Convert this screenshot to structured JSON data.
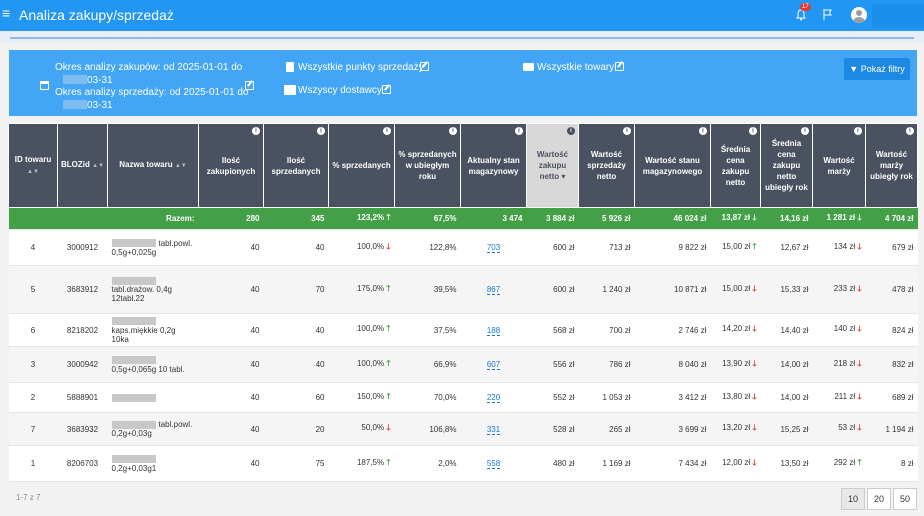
{
  "header": {
    "menu_icon": "≡",
    "title": "Analiza zakupy/sprzedaż",
    "notifications_count": "17",
    "bell_icon": "bell-icon",
    "flag_icon": "flag-icon",
    "avatar_icon": "user-avatar-icon"
  },
  "filters": {
    "purchase_period": "Okres analizy zakupów: od 2025-01-01 do",
    "purchase_period_end": "03-31",
    "sales_period": "Okres analizy sprzedaży: od 2025-01-01 do",
    "sales_period_end": "03-31",
    "points_of_sale": "Wszystkie punkty sprzedaży",
    "suppliers": "Wszyscy dostawcy",
    "products": "Wszystkie towary",
    "show_filters_button": "Pokaż filtry"
  },
  "table": {
    "columns": [
      "ID towaru",
      "BLOZid",
      "Nazwa towaru",
      "Ilość zakupionych",
      "Ilość sprzedanych",
      "% sprzedanych",
      "% sprzedanych w ubiegłym roku",
      "Aktualny stan magazynowy",
      "Wartość zakupu netto",
      "Wartość sprzedaży netto",
      "Wartość stanu magazynowego",
      "Średnia cena zakupu netto",
      "Średnia cena zakupu netto ubiegły rok",
      "Wartość marży",
      "Wartość marży ubiegły rok"
    ],
    "total": {
      "label": "Razem:",
      "bought": "280",
      "sold": "345",
      "pct_sold": "123,2%",
      "pct_sold_dir": "up",
      "pct_last_year": "67,5%",
      "stock": "3 474",
      "purchase_value": "3 884 zł",
      "sales_value": "5 926 zł",
      "stock_value": "46 024 zł",
      "avg_price": "13,87 zł",
      "avg_price_dir": "down",
      "avg_price_last_year": "14,16 zł",
      "margin": "1 281 zł",
      "margin_dir": "down",
      "margin_last_year": "4 704 zł"
    },
    "rows": [
      {
        "id": "4",
        "bloz": "3000912",
        "name": "tabl.powl. 0,5g+0,025g",
        "bought": "40",
        "sold": "40",
        "pct_sold": "100,0%",
        "pct_sold_dir": "down",
        "pct_last_year": "122,8%",
        "stock": "703",
        "purchase_value": "600 zł",
        "sales_value": "713 zł",
        "stock_value": "9 822 zł",
        "avg_price": "15,00 zł",
        "avg_price_dir": "up",
        "avg_price_last_year": "12,67 zł",
        "margin": "134 zł",
        "margin_dir": "down",
        "margin_last_year": "679 zł"
      },
      {
        "id": "5",
        "bloz": "3683912",
        "name": "tabl.drażow. 0,4g 12tabl.22",
        "bought": "40",
        "sold": "70",
        "pct_sold": "175,0%",
        "pct_sold_dir": "up",
        "pct_last_year": "39,5%",
        "stock": "867",
        "purchase_value": "600 zł",
        "sales_value": "1 240 zł",
        "stock_value": "10 871 zł",
        "avg_price": "15,00 zł",
        "avg_price_dir": "down",
        "avg_price_last_year": "15,33 zł",
        "margin": "233 zł",
        "margin_dir": "down",
        "margin_last_year": "478 zł"
      },
      {
        "id": "6",
        "bloz": "8218202",
        "name": "kaps.miękkie 0,2g 10ka",
        "bought": "40",
        "sold": "40",
        "pct_sold": "100,0%",
        "pct_sold_dir": "up",
        "pct_last_year": "37,5%",
        "stock": "188",
        "purchase_value": "568 zł",
        "sales_value": "700 zł",
        "stock_value": "2 746 zł",
        "avg_price": "14,20 zł",
        "avg_price_dir": "down",
        "avg_price_last_year": "14,40 zł",
        "margin": "140 zł",
        "margin_dir": "down",
        "margin_last_year": "824 zł"
      },
      {
        "id": "3",
        "bloz": "3000942",
        "name": "0,5g+0,065g 10 tabl.",
        "bought": "40",
        "sold": "40",
        "pct_sold": "100,0%",
        "pct_sold_dir": "up",
        "pct_last_year": "66,9%",
        "stock": "607",
        "purchase_value": "556 zł",
        "sales_value": "786 zł",
        "stock_value": "8 040 zł",
        "avg_price": "13,90 zł",
        "avg_price_dir": "down",
        "avg_price_last_year": "14,00 zł",
        "margin": "218 zł",
        "margin_dir": "down",
        "margin_last_year": "832 zł"
      },
      {
        "id": "2",
        "bloz": "5888901",
        "name": "",
        "bought": "40",
        "sold": "60",
        "pct_sold": "150,0%",
        "pct_sold_dir": "up",
        "pct_last_year": "70,0%",
        "stock": "220",
        "purchase_value": "552 zł",
        "sales_value": "1 053 zł",
        "stock_value": "3 412 zł",
        "avg_price": "13,80 zł",
        "avg_price_dir": "down",
        "avg_price_last_year": "14,00 zł",
        "margin": "211 zł",
        "margin_dir": "down",
        "margin_last_year": "689 zł"
      },
      {
        "id": "7",
        "bloz": "3683932",
        "name": "tabl.powl. 0,2g+0,03g",
        "bought": "40",
        "sold": "20",
        "pct_sold": "50,0%",
        "pct_sold_dir": "down",
        "pct_last_year": "106,8%",
        "stock": "331",
        "purchase_value": "528 zł",
        "sales_value": "265 zł",
        "stock_value": "3 699 zł",
        "avg_price": "13,20 zł",
        "avg_price_dir": "down",
        "avg_price_last_year": "15,25 zł",
        "margin": "53 zł",
        "margin_dir": "down",
        "margin_last_year": "1 194 zł"
      },
      {
        "id": "1",
        "bloz": "8206703",
        "name": "0,2g+0,03g1",
        "bought": "40",
        "sold": "75",
        "pct_sold": "187,5%",
        "pct_sold_dir": "up",
        "pct_last_year": "2,0%",
        "stock": "558",
        "purchase_value": "480 zł",
        "sales_value": "1 169 zł",
        "stock_value": "7 434 zł",
        "avg_price": "12,00 zł",
        "avg_price_dir": "down",
        "avg_price_last_year": "13,50 zł",
        "margin": "292 zł",
        "margin_dir": "up",
        "margin_last_year": "8 zł"
      }
    ]
  },
  "pagination": {
    "info": "1-7 z 7",
    "page_sizes": [
      "10",
      "20",
      "50"
    ],
    "active": "10"
  },
  "colors": {
    "primary": "#2196f3",
    "filter_bar": "#42a5f5",
    "header": "#4a5160",
    "total_row": "#43a047",
    "up": "#43a047",
    "down": "#e53935"
  }
}
